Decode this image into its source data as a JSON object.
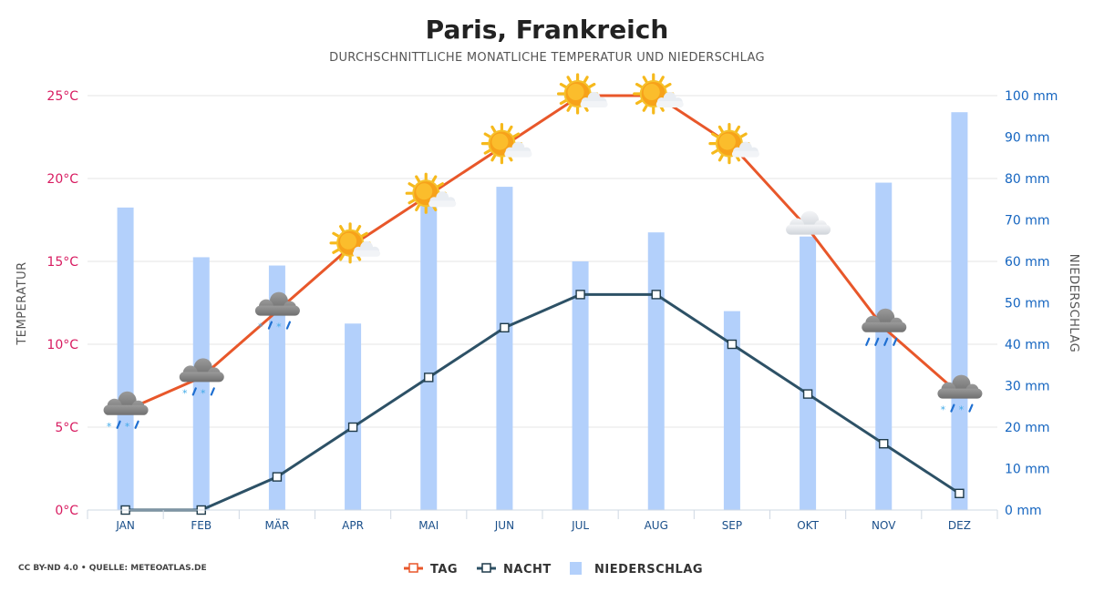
{
  "header": {
    "title": "Paris, Frankreich",
    "subtitle": "DURCHSCHNITTLICHE MONATLICHE TEMPERATUR UND NIEDERSCHLAG"
  },
  "credit": "CC BY-ND 4.0 • QUELLE: METEOATLAS.DE",
  "colors": {
    "tag": "#e8572a",
    "nacht": "#2d5166",
    "niederschlag": "#b3d0fb",
    "left_axis": "#d81b60",
    "right_axis": "#1565c0"
  },
  "chart_data": {
    "type": "bar",
    "title": "Paris, Frankreich",
    "subtitle": "DURCHSCHNITTLICHE MONATLICHE TEMPERATUR UND NIEDERSCHLAG",
    "categories": [
      "JAN",
      "FEB",
      "MÄR",
      "APR",
      "MAI",
      "JUN",
      "JUL",
      "AUG",
      "SEP",
      "OKT",
      "NOV",
      "DEZ"
    ],
    "series": [
      {
        "name": "TAG",
        "kind": "line",
        "axis": "left",
        "values": [
          6,
          8,
          12,
          16,
          19,
          22,
          25,
          25,
          22,
          17,
          11,
          7
        ]
      },
      {
        "name": "NACHT",
        "kind": "line",
        "axis": "left",
        "values": [
          0,
          0,
          2,
          5,
          8,
          11,
          13,
          13,
          10,
          7,
          4,
          1
        ]
      },
      {
        "name": "NIEDERSCHLAG",
        "kind": "bar",
        "axis": "right",
        "values": [
          73,
          61,
          59,
          45,
          75,
          78,
          60,
          67,
          48,
          66,
          79,
          96
        ]
      }
    ],
    "weather_icons": [
      "cloud-snow-rain",
      "cloud-snow-rain",
      "cloud-snow-rain",
      "sun-cloud",
      "sun-cloud",
      "sun-cloud",
      "sun-cloud",
      "sun-cloud",
      "sun-cloud",
      "cloud",
      "cloud-rain",
      "cloud-snow-rain"
    ],
    "ylabel": "TEMPERATUR",
    "ylabel_right": "NIEDERSCHLAG",
    "ylim": [
      0,
      25
    ],
    "ylim_right": [
      0,
      100
    ],
    "yticks": [
      "0°C",
      "5°C",
      "10°C",
      "15°C",
      "20°C",
      "25°C"
    ],
    "yticks_right": [
      "0 mm",
      "10 mm",
      "20 mm",
      "30 mm",
      "40 mm",
      "50 mm",
      "60 mm",
      "70 mm",
      "80 mm",
      "90 mm",
      "100 mm"
    ],
    "grid": true,
    "legend_position": "bottom-center"
  }
}
